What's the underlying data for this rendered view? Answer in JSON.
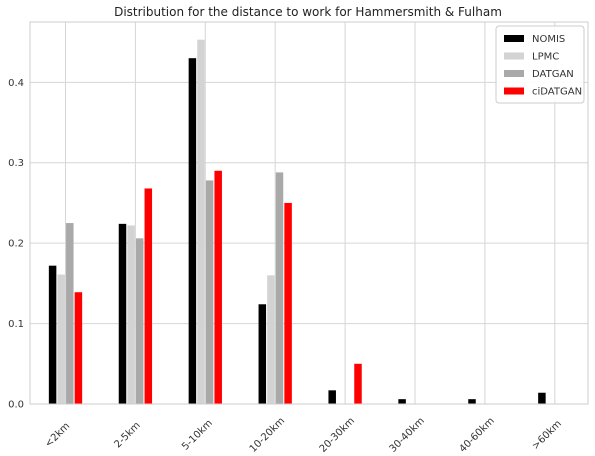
{
  "chart_data": {
    "type": "bar",
    "title": "Distribution for the distance to work for Hammersmith & Fulham",
    "xlabel": "",
    "ylabel": "",
    "ylim": [
      0,
      0.475
    ],
    "yticks": [
      0.0,
      0.1,
      0.2,
      0.3,
      0.4
    ],
    "grid": true,
    "legend_position": "top-right",
    "categories": [
      "<2km",
      "2-5km",
      "5-10km",
      "10-20km",
      "20-30km",
      "30-40km",
      "40-60km",
      ">60km"
    ],
    "series": [
      {
        "name": "NOMIS",
        "color": "#000000",
        "values": [
          0.172,
          0.224,
          0.43,
          0.124,
          0.017,
          0.006,
          0.006,
          0.014
        ]
      },
      {
        "name": "LPMC",
        "color": "#d3d3d3",
        "values": [
          0.161,
          0.222,
          0.453,
          0.16,
          0.0,
          0.0,
          0.0,
          0.0
        ]
      },
      {
        "name": "DATGAN",
        "color": "#a9a9a9",
        "values": [
          0.225,
          0.206,
          0.278,
          0.288,
          0.0,
          0.0,
          0.0,
          0.0
        ]
      },
      {
        "name": "ciDATGAN",
        "color": "#ff0000",
        "values": [
          0.139,
          0.268,
          0.29,
          0.25,
          0.05,
          0.0,
          0.0,
          0.0
        ]
      }
    ]
  }
}
